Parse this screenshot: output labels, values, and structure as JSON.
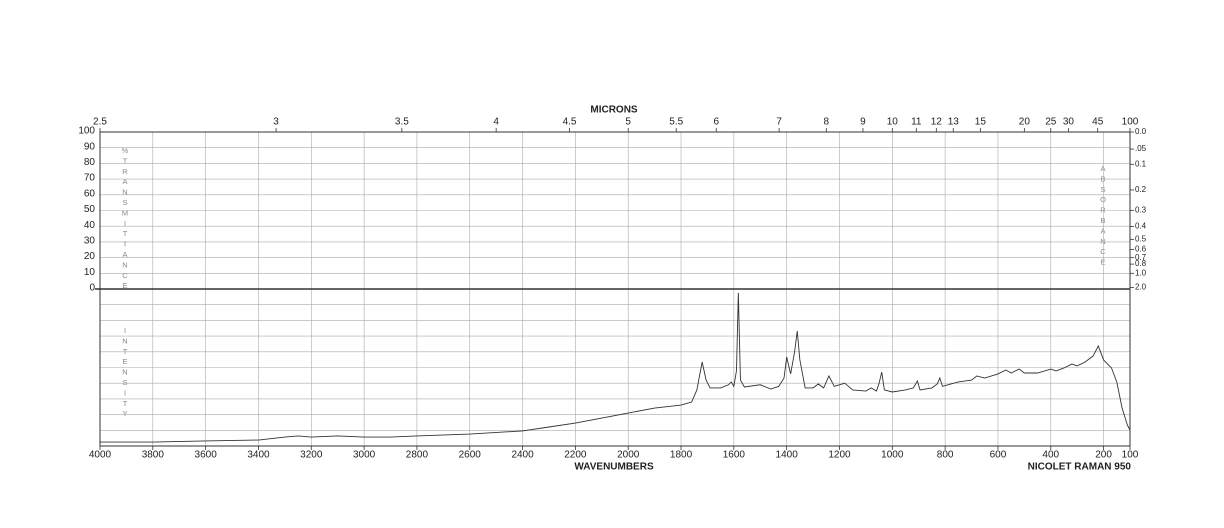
{
  "chart_data": {
    "type": "spectrum",
    "top_axis_label": "MICRONS",
    "x_label": "WAVENUMBERS",
    "annotation": "NICOLET RAMAN 950",
    "left_label": "%TRANSMITTANCE",
    "lower_label": "INTENSITY",
    "right_label": "ABSORBANCE",
    "xlim": [
      4000,
      100
    ],
    "xticks": [
      4000,
      3800,
      3600,
      3400,
      3200,
      3000,
      2800,
      2600,
      2400,
      2200,
      2000,
      1800,
      1600,
      1400,
      1200,
      1000,
      800,
      600,
      400,
      200,
      100
    ],
    "micron_ticks": [
      2.5,
      3,
      3.5,
      4,
      4.5,
      5,
      5.5,
      6,
      7,
      8,
      9,
      10,
      11,
      12,
      13,
      15,
      20,
      25,
      30,
      45,
      100
    ],
    "ylim": [
      0,
      100
    ],
    "yticks": [
      0,
      10,
      20,
      30,
      40,
      50,
      60,
      70,
      80,
      90,
      100
    ],
    "y2ticks": [
      {
        "value": 0,
        "label": "0.0"
      },
      {
        "value": 0.05,
        "label": ".05"
      },
      0.1,
      0.2,
      0.3,
      0.4,
      0.5,
      0.6,
      0.7,
      0.8,
      {
        "value": 1,
        "label": "1.0"
      },
      {
        "value": 2,
        "label": "2.0"
      }
    ],
    "intensity_ylim": [
      0,
      100
    ],
    "grid": true,
    "color": "#333333",
    "x": [
      4000,
      3800,
      3600,
      3400,
      3300,
      3250,
      3200,
      3100,
      3000,
      2900,
      2800,
      2600,
      2400,
      2300,
      2200,
      2100,
      2000,
      1900,
      1800,
      1760,
      1740,
      1720,
      1705,
      1690,
      1650,
      1620,
      1610,
      1600,
      1590,
      1583,
      1575,
      1560,
      1500,
      1460,
      1430,
      1410,
      1400,
      1385,
      1370,
      1360,
      1350,
      1330,
      1300,
      1280,
      1260,
      1240,
      1220,
      1200,
      1180,
      1150,
      1100,
      1080,
      1060,
      1050,
      1040,
      1030,
      1000,
      950,
      920,
      905,
      895,
      850,
      830,
      820,
      810,
      750,
      700,
      680,
      650,
      600,
      570,
      550,
      520,
      500,
      450,
      400,
      380,
      350,
      320,
      300,
      270,
      240,
      220,
      200,
      170,
      150,
      130,
      110,
      100
    ],
    "values": [
      2.5,
      2.5,
      3.2,
      3.8,
      5.7,
      6.4,
      5.7,
      6.4,
      5.7,
      5.7,
      6.4,
      7.6,
      9.6,
      12.1,
      14.6,
      17.8,
      21,
      24.2,
      26.1,
      28,
      35.7,
      53.5,
      42,
      37,
      37,
      39,
      40.8,
      38,
      48,
      97.5,
      42,
      37.6,
      39,
      36.3,
      38,
      43.3,
      56.7,
      45.9,
      59.9,
      73.2,
      54.8,
      37,
      37,
      39.5,
      37,
      44.6,
      38,
      39,
      40,
      35.7,
      35,
      37,
      35,
      40,
      47.1,
      35.7,
      34.4,
      35.7,
      37,
      41.4,
      35.7,
      37,
      39.5,
      43.3,
      38,
      40.8,
      42,
      44.6,
      43.3,
      45.9,
      48.4,
      46.5,
      49,
      46.5,
      46.5,
      49,
      47.8,
      49.7,
      52.2,
      51,
      53.5,
      57.3,
      63.7,
      54.8,
      49.7,
      40.8,
      24.2,
      13.4,
      10.2
    ]
  }
}
